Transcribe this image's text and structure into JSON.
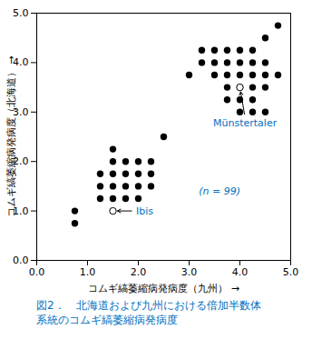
{
  "chart_data": {
    "type": "scatter",
    "xlabel": "コムギ縞萎縮病発病度（九州）",
    "ylabel": "コムギ縞萎縮病発病度（北海道）",
    "caption": {
      "lines": [
        "図2．　北海道および九州における倍加半数体",
        "系統のコムギ縞萎縮病発病度"
      ],
      "color": "#0070c0"
    },
    "xlim": [
      0.0,
      5.0
    ],
    "ylim": [
      0.0,
      5.0
    ],
    "xticks": [
      0,
      1,
      2,
      3,
      4,
      5
    ],
    "yticks": [
      0,
      1,
      2,
      3,
      4,
      5
    ],
    "grid": false,
    "series": [
      {
        "marker": "filled",
        "color": "#000000",
        "x": [
          0.75,
          0.75,
          1.25,
          1.25,
          1.25,
          1.5,
          1.5,
          1.5,
          1.5,
          1.5,
          1.75,
          1.75,
          1.75,
          1.75,
          2.0,
          2.0,
          2.0,
          2.0,
          2.25,
          2.25,
          2.25,
          2.5,
          3.0,
          3.25,
          3.25,
          3.5,
          3.5,
          3.5,
          3.75,
          3.75,
          3.75,
          3.75,
          3.75,
          4.0,
          4.0,
          4.0,
          4.0,
          4.0,
          4.0,
          4.25,
          4.25,
          4.25,
          4.25,
          4.25,
          4.25,
          4.5,
          4.5,
          4.5,
          4.5,
          4.5,
          4.75,
          4.75
        ],
        "values": [
          1.0,
          0.75,
          1.5,
          1.75,
          1.25,
          2.25,
          2.0,
          1.75,
          1.5,
          1.25,
          2.0,
          1.75,
          1.5,
          1.25,
          2.0,
          1.75,
          1.5,
          1.25,
          2.0,
          1.75,
          1.5,
          2.5,
          3.75,
          4.25,
          4.0,
          4.25,
          4.0,
          3.75,
          4.25,
          4.0,
          3.75,
          3.5,
          3.25,
          4.25,
          4.0,
          3.75,
          3.5,
          3.25,
          3.0,
          4.25,
          4.0,
          3.75,
          3.5,
          3.25,
          3.0,
          4.5,
          4.0,
          3.75,
          3.5,
          3.0,
          4.75,
          3.75
        ]
      },
      {
        "marker": "open",
        "color": "#000000",
        "x": [
          1.5,
          4.0
        ],
        "values": [
          1.0,
          3.5
        ]
      }
    ],
    "annotations": [
      {
        "text": "Ibis",
        "x": 1.5,
        "y": 1.0,
        "color": "#0070c0",
        "arrow": {
          "color": "#000000"
        }
      },
      {
        "text": "Münstertaler",
        "x": 4.0,
        "y": 3.5,
        "color": "#0070c0",
        "arrow": {
          "color": "#000000"
        }
      },
      {
        "text": "(n = 99)",
        "x": 3.6,
        "y": 1.4,
        "color": "#0070c0"
      }
    ]
  }
}
